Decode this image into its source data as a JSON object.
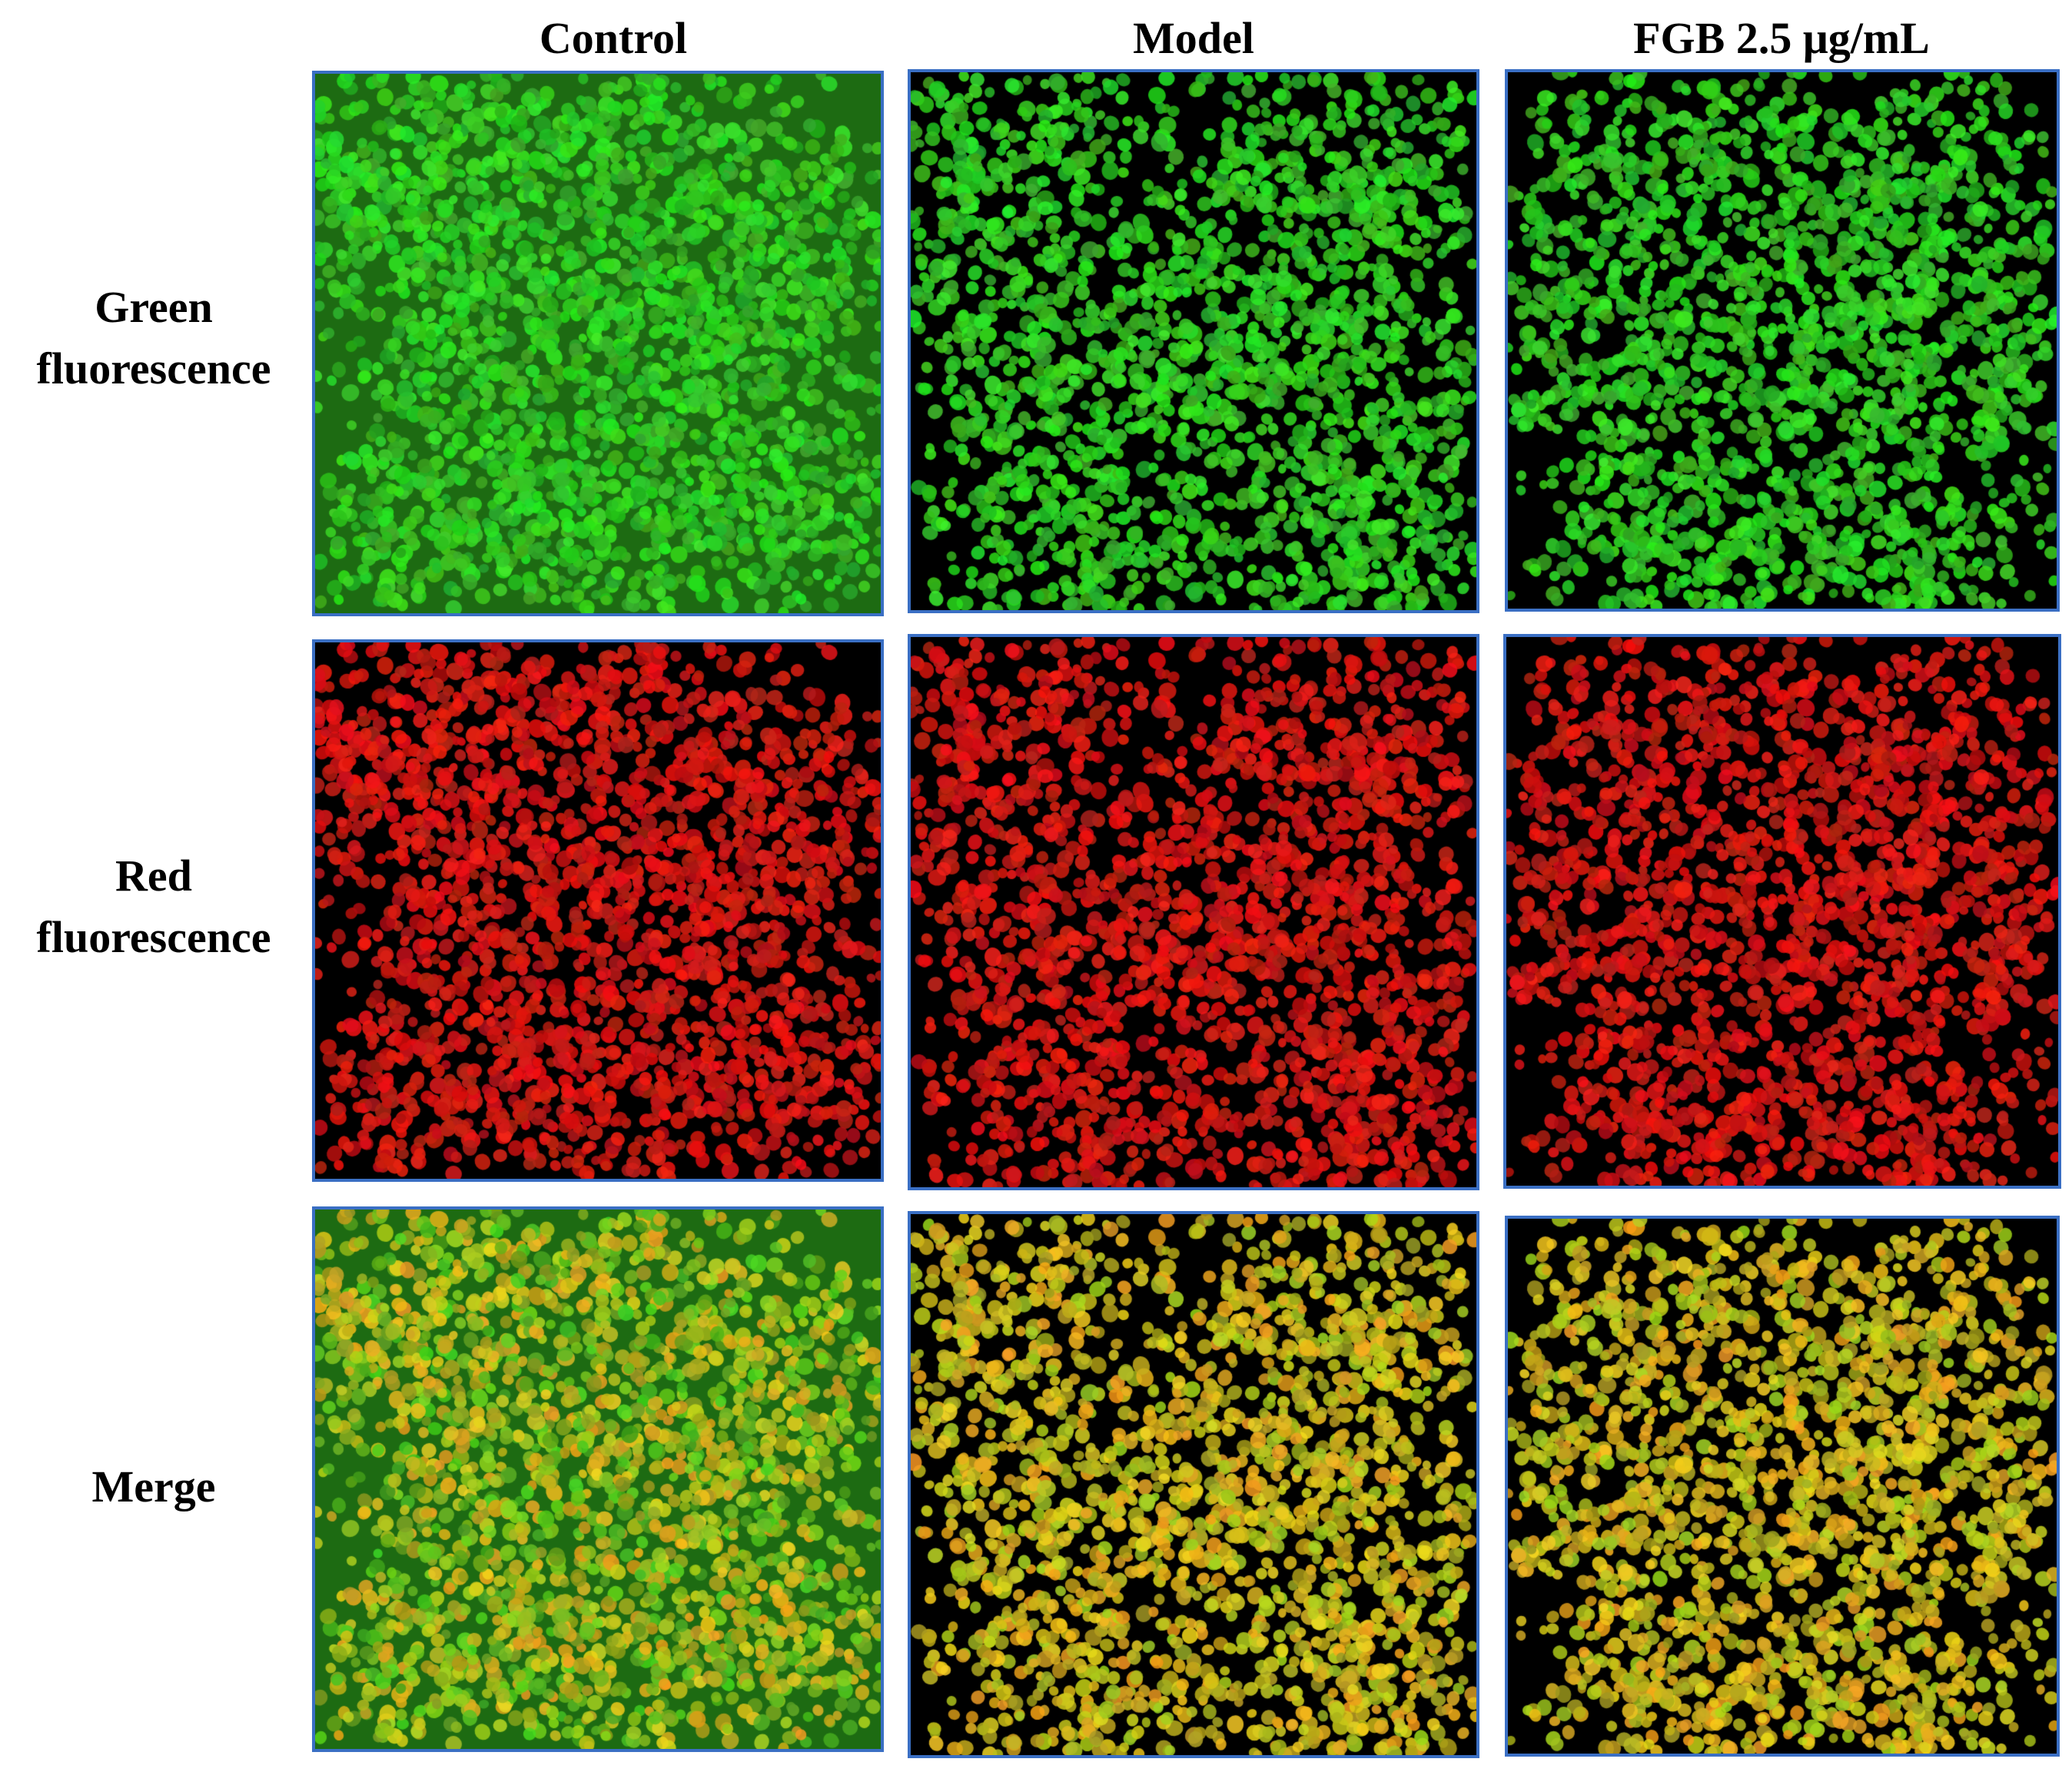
{
  "columns": [
    {
      "label": "Control"
    },
    {
      "label": "Model"
    },
    {
      "label": "FGB 2.5 μg/mL"
    }
  ],
  "rows": [
    {
      "label_lines": [
        "Green",
        "fluorescence"
      ],
      "channel": "green"
    },
    {
      "label_lines": [
        "Red",
        "fluorescence"
      ],
      "channel": "red"
    },
    {
      "label_lines": [
        "Merge"
      ],
      "channel": "merge"
    }
  ],
  "colors": {
    "panel_border": "#3a6fc4",
    "green_cell": "#2fd12a",
    "red_cell": "#e01a14",
    "merge_cell": "#c8b21a",
    "control_background": "#1d6b12",
    "dark_background": "#000000"
  }
}
